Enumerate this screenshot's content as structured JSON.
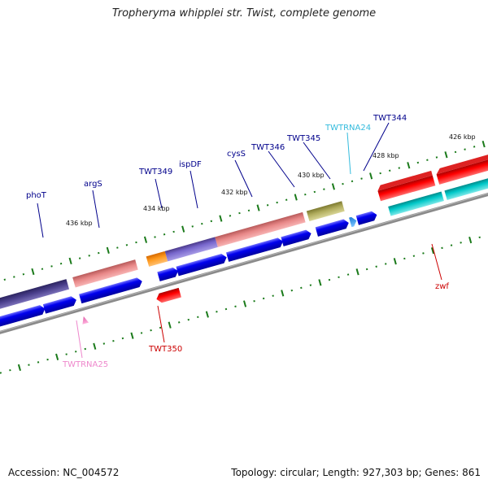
{
  "title": "Tropheryma whipplei str. Twist, complete genome",
  "accession": "Accession: NC_004572",
  "topology": "Topology: circular; Length: 927,303 bp; Genes: 861",
  "colors": {
    "backbone": "#8a8a8a",
    "tick": "#1a7a1a",
    "cds_blue": "#0000ee",
    "label_blue": "#00008b",
    "label_red": "#cc0000",
    "label_pink": "#ee88cc",
    "label_cyan": "#33bbdd"
  },
  "ticks": [
    "436 kbp",
    "434 kbp",
    "432 kbp",
    "430 kbp",
    "428 kbp",
    "426 kbp"
  ],
  "gene_labels": [
    "phoT",
    "argS",
    "TWT349",
    "ispDF",
    "cysS",
    "TWT346",
    "TWT345",
    "TWTRNA24",
    "TWT344",
    "zwf",
    "TWTRNA25",
    "TWT350"
  ]
}
